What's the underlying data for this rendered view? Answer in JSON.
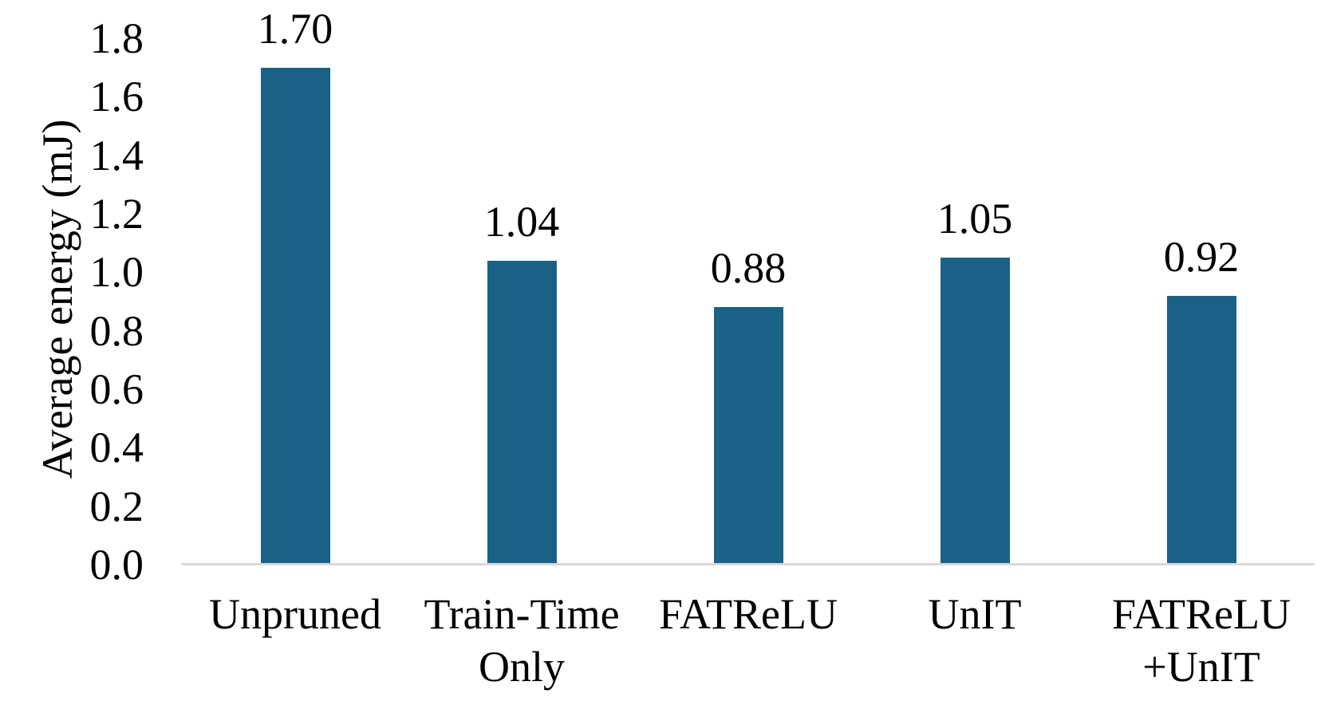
{
  "chart_data": {
    "type": "bar",
    "title": "",
    "xlabel": "",
    "ylabel": "Average energy (mJ)",
    "categories": [
      "Unpruned",
      "Train-Time Only",
      "FATReLU",
      "UnIT",
      "FATReLU +UnIT"
    ],
    "categories_lines": [
      [
        "Unpruned"
      ],
      [
        "Train-Time",
        "Only"
      ],
      [
        "FATReLU"
      ],
      [
        "UnIT"
      ],
      [
        "FATReLU",
        "+UnIT"
      ]
    ],
    "values": [
      1.7,
      1.04,
      0.88,
      1.05,
      0.92
    ],
    "data_labels": [
      "1.70",
      "1.04",
      "0.88",
      "1.05",
      "0.92"
    ],
    "ylim": [
      0.0,
      1.8
    ],
    "ytick_step": 0.2,
    "yticks": [
      "0.0",
      "0.2",
      "0.4",
      "0.6",
      "0.8",
      "1.0",
      "1.2",
      "1.4",
      "1.6",
      "1.8"
    ],
    "grid": false,
    "legend": "none",
    "bar_color": "#1a6285",
    "axis_line_color": "#d9d9d9",
    "text_color": "#000000"
  }
}
